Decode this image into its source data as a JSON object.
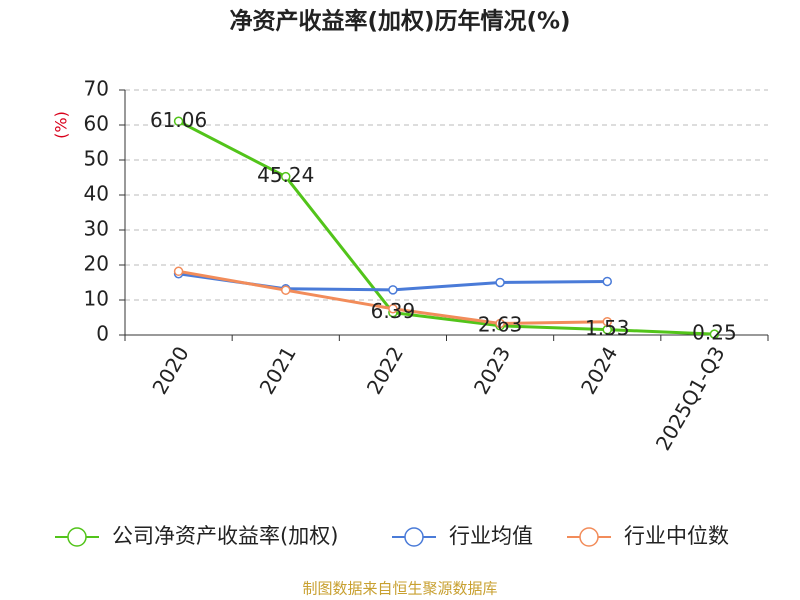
{
  "chart_data": {
    "type": "line",
    "title": "净资产收益率(加权)历年情况(%)",
    "y_label": "(%)",
    "categories": [
      "2020",
      "2021",
      "2022",
      "2023",
      "2024",
      "2025Q1-Q3"
    ],
    "series": [
      {
        "name": "公司净资产收益率(加权)",
        "color": "#52c41a",
        "values": [
          61.06,
          45.24,
          6.39,
          2.63,
          1.53,
          0.25
        ],
        "show_labels": true
      },
      {
        "name": "行业均值",
        "color": "#4a7bd8",
        "values": [
          17.5,
          13.2,
          12.9,
          15.0,
          15.3,
          null
        ]
      },
      {
        "name": "行业中位数",
        "color": "#f28c5a",
        "values": [
          18.2,
          12.8,
          7.5,
          3.3,
          3.8,
          null
        ]
      }
    ],
    "ylim": [
      0,
      70
    ],
    "yticks": [
      0,
      10,
      20,
      30,
      40,
      50,
      60,
      70
    ],
    "grid": true,
    "source": "制图数据来自恒生聚源数据库"
  }
}
